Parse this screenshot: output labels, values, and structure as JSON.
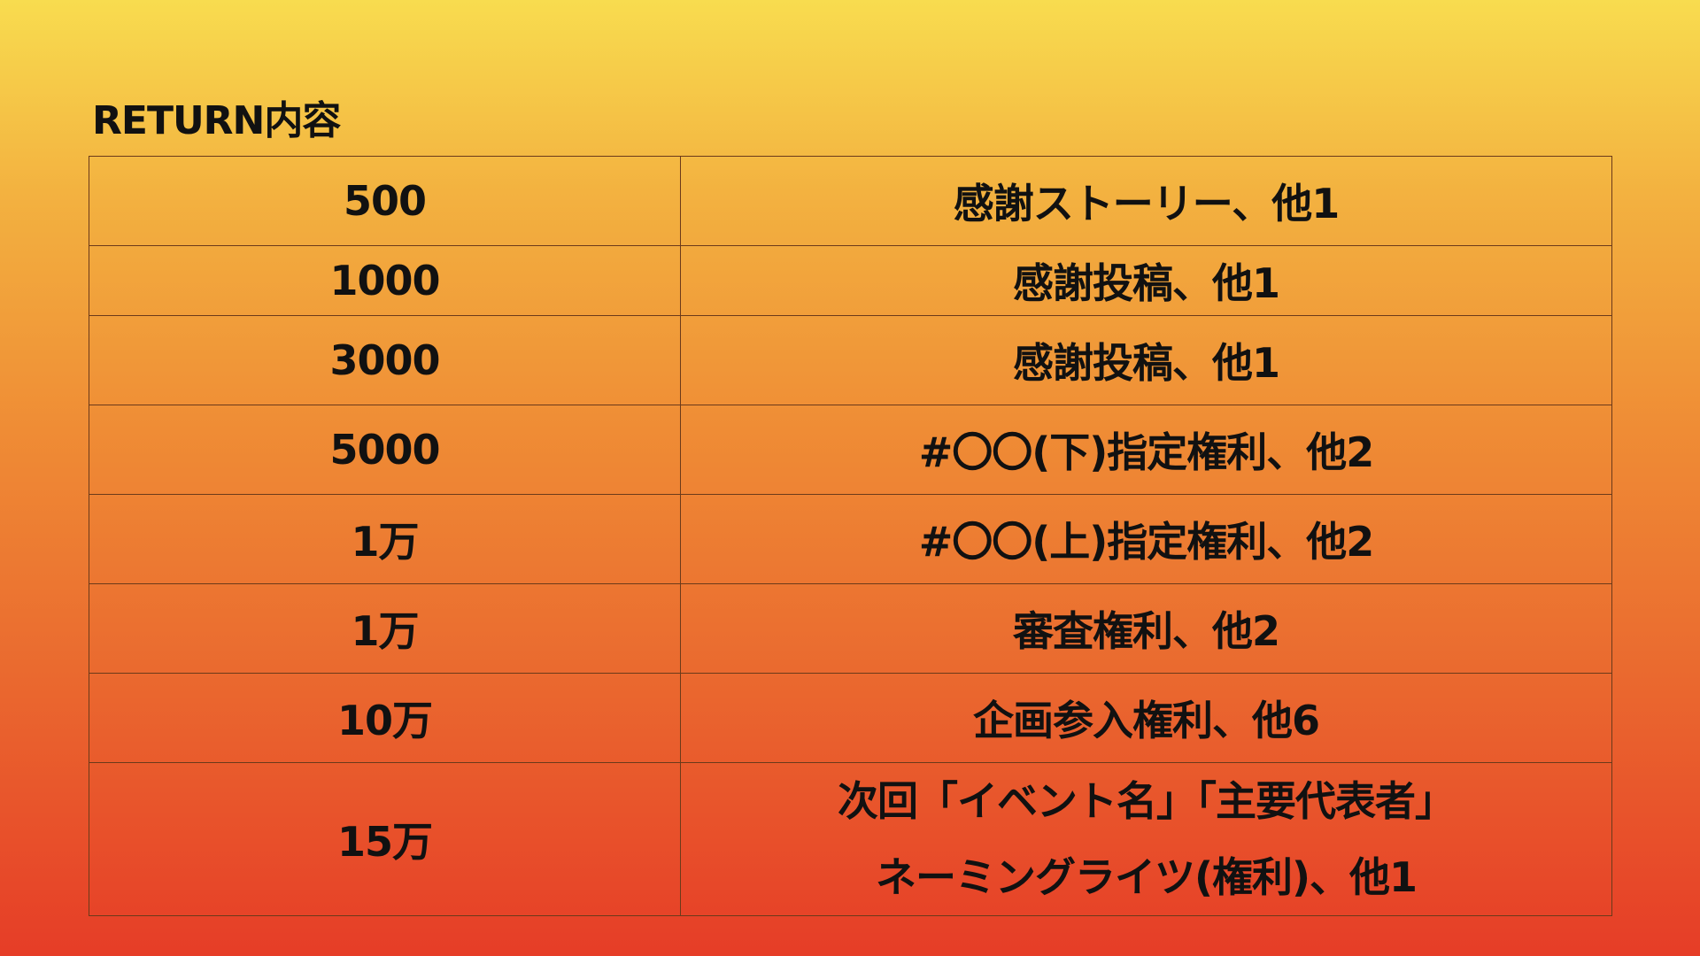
{
  "title": "RETURN内容",
  "rows": [
    {
      "amount": "500",
      "content": [
        "感謝ストーリー、他1"
      ]
    },
    {
      "amount": "1000",
      "content": [
        "感謝投稿、他1"
      ]
    },
    {
      "amount": "3000",
      "content": [
        "感謝投稿、他1"
      ]
    },
    {
      "amount": "5000",
      "content": [
        "#〇〇(下)指定権利、他2"
      ]
    },
    {
      "amount": "1万",
      "content": [
        "#〇〇(上)指定権利、他2"
      ]
    },
    {
      "amount": "1万",
      "content": [
        "審査権利、他2"
      ]
    },
    {
      "amount": "10万",
      "content": [
        "企画参入権利、他6"
      ]
    },
    {
      "amount": "15万",
      "content": [
        "次回「イベント名」「主要代表者」",
        "ネーミングライツ(権利)、他1"
      ]
    }
  ]
}
